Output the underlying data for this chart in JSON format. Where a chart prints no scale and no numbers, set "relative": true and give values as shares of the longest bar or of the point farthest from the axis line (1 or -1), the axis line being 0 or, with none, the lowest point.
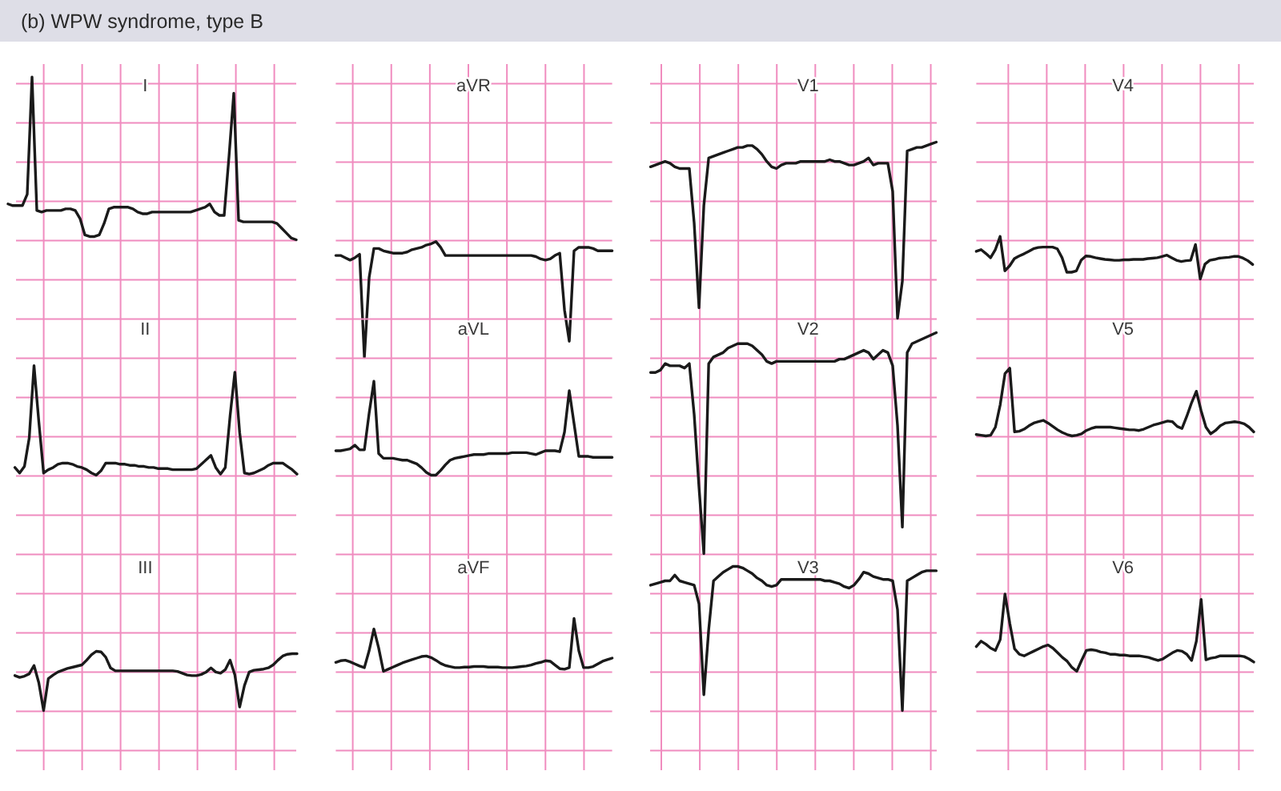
{
  "chart_data": [
    {
      "type": "other",
      "title": "(b) WPW syndrome, type B"
    },
    {
      "type": "line",
      "title": "I",
      "relative": true,
      "grid": true,
      "color": "#1a1a1a",
      "categories": [
        null,
        null,
        null,
        null,
        null,
        null,
        null,
        null,
        null,
        null,
        null,
        null,
        null,
        null,
        null,
        null,
        null,
        null,
        null,
        null,
        null,
        null,
        null,
        null,
        null,
        null,
        null,
        null,
        null,
        null,
        null,
        null,
        null,
        null,
        null,
        null,
        null,
        null,
        null,
        null,
        null,
        null,
        null,
        null,
        null,
        null,
        null,
        null,
        null,
        null,
        null,
        null,
        null,
        null,
        null,
        null,
        null,
        null,
        null,
        null,
        null
      ],
      "values": [
        0.22,
        0.21,
        0.21,
        0.21,
        0.28,
        1,
        0.18,
        0.17,
        0.18,
        0.18,
        0.18,
        0.18,
        0.19,
        0.19,
        0.18,
        0.13,
        0.03,
        0.02,
        0.02,
        0.03,
        0.1,
        0.19,
        0.2,
        0.2,
        0.2,
        0.2,
        0.19,
        0.17,
        0.16,
        0.16,
        0.17,
        0.17,
        0.17,
        0.17,
        0.17,
        0.17,
        0.17,
        0.17,
        0.17,
        0.18,
        0.19,
        0.2,
        0.22,
        0.17,
        0.15,
        0.15,
        0.51,
        0.9,
        0.12,
        0.11,
        0.11,
        0.11,
        0.11,
        0.11,
        0.11,
        0.11,
        0.1,
        0.07,
        0.04,
        0.01,
        0
      ]
    },
    {
      "type": "line",
      "title": "aVR",
      "relative": true,
      "grid": true,
      "color": "#1a1a1a",
      "categories": [
        null,
        null,
        null,
        null,
        null,
        null,
        null,
        null,
        null,
        null,
        null,
        null,
        null,
        null,
        null,
        null,
        null,
        null,
        null,
        null,
        null,
        null,
        null,
        null,
        null,
        null,
        null,
        null,
        null,
        null,
        null,
        null,
        null,
        null,
        null,
        null,
        null,
        null,
        null,
        null,
        null,
        null,
        null,
        null,
        null,
        null,
        null,
        null,
        null,
        null,
        null,
        null,
        null,
        null,
        null,
        null,
        null,
        null,
        null
      ],
      "values": [
        0.88,
        0.88,
        0.86,
        0.84,
        0.86,
        0.89,
        0,
        0.69,
        0.94,
        0.94,
        0.92,
        0.91,
        0.9,
        0.9,
        0.9,
        0.91,
        0.93,
        0.94,
        0.95,
        0.97,
        0.98,
        1,
        0.95,
        0.88,
        0.88,
        0.88,
        0.88,
        0.88,
        0.88,
        0.88,
        0.88,
        0.88,
        0.88,
        0.88,
        0.88,
        0.88,
        0.88,
        0.88,
        0.88,
        0.88,
        0.88,
        0.88,
        0.87,
        0.85,
        0.84,
        0.85,
        0.88,
        0.9,
        0.41,
        0.14,
        0.92,
        0.95,
        0.95,
        0.95,
        0.94,
        0.92,
        0.92,
        0.92,
        0.92
      ]
    },
    {
      "type": "line",
      "title": "V1",
      "relative": true,
      "grid": true,
      "color": "#1a1a1a",
      "categories": [
        null,
        null,
        null,
        null,
        null,
        null,
        null,
        null,
        null,
        null,
        null,
        null,
        null,
        null,
        null,
        null,
        null,
        null,
        null,
        null,
        null,
        null,
        null,
        null,
        null,
        null,
        null,
        null,
        null,
        null,
        null,
        null,
        null,
        null,
        null,
        null,
        null,
        null,
        null,
        null,
        null,
        null,
        null,
        null,
        null,
        null,
        null,
        null,
        null,
        null,
        null,
        null,
        null,
        null,
        null,
        null,
        null,
        null,
        null,
        null
      ],
      "values": [
        0.86,
        0.87,
        0.88,
        0.89,
        0.88,
        0.86,
        0.85,
        0.85,
        0.85,
        0.54,
        0.06,
        0.64,
        0.91,
        0.92,
        0.93,
        0.94,
        0.95,
        0.96,
        0.97,
        0.97,
        0.98,
        0.98,
        0.96,
        0.93,
        0.89,
        0.86,
        0.85,
        0.87,
        0.88,
        0.88,
        0.88,
        0.89,
        0.89,
        0.89,
        0.89,
        0.89,
        0.89,
        0.9,
        0.89,
        0.89,
        0.88,
        0.87,
        0.87,
        0.88,
        0.89,
        0.91,
        0.87,
        0.88,
        0.88,
        0.88,
        0.72,
        0,
        0.21,
        0.95,
        0.96,
        0.97,
        0.97,
        0.98,
        0.99,
        1
      ]
    },
    {
      "type": "line",
      "title": "V4",
      "relative": true,
      "grid": true,
      "color": "#1a1a1a",
      "categories": [
        null,
        null,
        null,
        null,
        null,
        null,
        null,
        null,
        null,
        null,
        null,
        null,
        null,
        null,
        null,
        null,
        null,
        null,
        null,
        null,
        null,
        null,
        null,
        null,
        null,
        null,
        null,
        null,
        null,
        null,
        null,
        null,
        null,
        null,
        null,
        null,
        null,
        null,
        null,
        null,
        null,
        null,
        null,
        null,
        null,
        null,
        null,
        null,
        null,
        null,
        null,
        null,
        null,
        null,
        null,
        null,
        null,
        null,
        null
      ],
      "values": [
        0.65,
        0.69,
        0.6,
        0.5,
        0.69,
        1,
        0.19,
        0.31,
        0.48,
        0.54,
        0.59,
        0.65,
        0.71,
        0.74,
        0.75,
        0.75,
        0.75,
        0.71,
        0.5,
        0.16,
        0.16,
        0.19,
        0.44,
        0.54,
        0.53,
        0.5,
        0.48,
        0.46,
        0.45,
        0.44,
        0.44,
        0.45,
        0.45,
        0.46,
        0.46,
        0.46,
        0.48,
        0.49,
        0.5,
        0.53,
        0.56,
        0.5,
        0.44,
        0.41,
        0.43,
        0.44,
        0.81,
        0,
        0.35,
        0.44,
        0.46,
        0.49,
        0.5,
        0.51,
        0.53,
        0.53,
        0.49,
        0.43,
        0.34
      ]
    },
    {
      "type": "line",
      "title": "II",
      "relative": true,
      "grid": true,
      "color": "#1a1a1a",
      "categories": [
        null,
        null,
        null,
        null,
        null,
        null,
        null,
        null,
        null,
        null,
        null,
        null,
        null,
        null,
        null,
        null,
        null,
        null,
        null,
        null,
        null,
        null,
        null,
        null,
        null,
        null,
        null,
        null,
        null,
        null,
        null,
        null,
        null,
        null,
        null,
        null,
        null,
        null,
        null,
        null,
        null,
        null,
        null,
        null,
        null,
        null,
        null,
        null,
        null,
        null,
        null,
        null,
        null,
        null,
        null,
        null,
        null,
        null,
        null,
        null
      ],
      "values": [
        0.07,
        0.02,
        0.08,
        0.34,
        1,
        0.49,
        0.02,
        0.05,
        0.07,
        0.1,
        0.11,
        0.11,
        0.1,
        0.08,
        0.07,
        0.05,
        0.02,
        0,
        0.04,
        0.11,
        0.11,
        0.11,
        0.1,
        0.1,
        0.09,
        0.09,
        0.08,
        0.08,
        0.07,
        0.07,
        0.06,
        0.06,
        0.06,
        0.05,
        0.05,
        0.05,
        0.05,
        0.05,
        0.06,
        0.1,
        0.14,
        0.18,
        0.07,
        0.01,
        0.07,
        0.54,
        0.94,
        0.39,
        0.02,
        0.01,
        0.02,
        0.04,
        0.06,
        0.09,
        0.11,
        0.11,
        0.11,
        0.08,
        0.05,
        0.01
      ]
    },
    {
      "type": "line",
      "title": "aVL",
      "relative": true,
      "grid": true,
      "color": "#1a1a1a",
      "categories": [
        null,
        null,
        null,
        null,
        null,
        null,
        null,
        null,
        null,
        null,
        null,
        null,
        null,
        null,
        null,
        null,
        null,
        null,
        null,
        null,
        null,
        null,
        null,
        null,
        null,
        null,
        null,
        null,
        null,
        null,
        null,
        null,
        null,
        null,
        null,
        null,
        null,
        null,
        null,
        null,
        null,
        null,
        null,
        null,
        null,
        null,
        null,
        null,
        null,
        null,
        null,
        null,
        null,
        null,
        null,
        null,
        null,
        null,
        null
      ],
      "values": [
        0.26,
        0.26,
        0.27,
        0.28,
        0.32,
        0.27,
        0.27,
        0.66,
        1,
        0.23,
        0.18,
        0.18,
        0.18,
        0.17,
        0.16,
        0.16,
        0.14,
        0.12,
        0.08,
        0.03,
        0,
        0,
        0.05,
        0.11,
        0.16,
        0.18,
        0.19,
        0.2,
        0.21,
        0.22,
        0.22,
        0.22,
        0.23,
        0.23,
        0.23,
        0.23,
        0.23,
        0.24,
        0.24,
        0.24,
        0.24,
        0.23,
        0.22,
        0.24,
        0.26,
        0.26,
        0.26,
        0.25,
        0.46,
        0.9,
        0.55,
        0.2,
        0.2,
        0.2,
        0.19,
        0.19,
        0.19,
        0.19,
        0.19
      ]
    },
    {
      "type": "line",
      "title": "V2",
      "relative": true,
      "grid": true,
      "color": "#1a1a1a",
      "categories": [
        null,
        null,
        null,
        null,
        null,
        null,
        null,
        null,
        null,
        null,
        null,
        null,
        null,
        null,
        null,
        null,
        null,
        null,
        null,
        null,
        null,
        null,
        null,
        null,
        null,
        null,
        null,
        null,
        null,
        null,
        null,
        null,
        null,
        null,
        null,
        null,
        null,
        null,
        null,
        null,
        null,
        null,
        null,
        null,
        null,
        null,
        null,
        null,
        null,
        null,
        null,
        null,
        null,
        null,
        null,
        null,
        null,
        null,
        null,
        null
      ],
      "values": [
        0.82,
        0.82,
        0.83,
        0.86,
        0.85,
        0.85,
        0.85,
        0.84,
        0.86,
        0.63,
        0.3,
        0,
        0.86,
        0.89,
        0.9,
        0.91,
        0.93,
        0.94,
        0.95,
        0.95,
        0.95,
        0.94,
        0.92,
        0.9,
        0.87,
        0.86,
        0.87,
        0.87,
        0.87,
        0.87,
        0.87,
        0.87,
        0.87,
        0.87,
        0.87,
        0.87,
        0.87,
        0.87,
        0.87,
        0.88,
        0.88,
        0.89,
        0.9,
        0.91,
        0.92,
        0.91,
        0.88,
        0.9,
        0.92,
        0.91,
        0.85,
        0.58,
        0.12,
        0.91,
        0.95,
        0.96,
        0.97,
        0.98,
        0.99,
        1
      ]
    },
    {
      "type": "line",
      "title": "V5",
      "relative": true,
      "grid": true,
      "color": "#1a1a1a",
      "categories": [
        null,
        null,
        null,
        null,
        null,
        null,
        null,
        null,
        null,
        null,
        null,
        null,
        null,
        null,
        null,
        null,
        null,
        null,
        null,
        null,
        null,
        null,
        null,
        null,
        null,
        null,
        null,
        null,
        null,
        null,
        null,
        null,
        null,
        null,
        null,
        null,
        null,
        null,
        null,
        null,
        null,
        null,
        null,
        null,
        null,
        null,
        null,
        null,
        null,
        null,
        null,
        null,
        null,
        null,
        null,
        null,
        null,
        null,
        null
      ],
      "values": [
        0.02,
        0.01,
        0,
        0.01,
        0.13,
        0.46,
        0.92,
        1,
        0.06,
        0.07,
        0.1,
        0.15,
        0.19,
        0.21,
        0.23,
        0.19,
        0.14,
        0.09,
        0.05,
        0.02,
        0,
        0.01,
        0.03,
        0.08,
        0.11,
        0.13,
        0.13,
        0.13,
        0.13,
        0.12,
        0.11,
        0.1,
        0.09,
        0.09,
        0.08,
        0.1,
        0.13,
        0.16,
        0.18,
        0.2,
        0.22,
        0.21,
        0.14,
        0.11,
        0.29,
        0.49,
        0.66,
        0.37,
        0.13,
        0.03,
        0.08,
        0.15,
        0.19,
        0.2,
        0.21,
        0.2,
        0.18,
        0.13,
        0.06
      ]
    },
    {
      "type": "line",
      "title": "III",
      "relative": true,
      "grid": true,
      "color": "#1a1a1a",
      "categories": [
        null,
        null,
        null,
        null,
        null,
        null,
        null,
        null,
        null,
        null,
        null,
        null,
        null,
        null,
        null,
        null,
        null,
        null,
        null,
        null,
        null,
        null,
        null,
        null,
        null,
        null,
        null,
        null,
        null,
        null,
        null,
        null,
        null,
        null,
        null,
        null,
        null,
        null,
        null,
        null,
        null,
        null,
        null,
        null,
        null,
        null,
        null,
        null,
        null,
        null,
        null,
        null,
        null,
        null,
        null,
        null,
        null,
        null,
        null,
        null
      ],
      "values": [
        0.59,
        0.56,
        0.58,
        0.62,
        0.76,
        0.47,
        0,
        0.54,
        0.6,
        0.65,
        0.68,
        0.71,
        0.73,
        0.75,
        0.77,
        0.85,
        0.94,
        1,
        0.99,
        0.9,
        0.72,
        0.67,
        0.67,
        0.67,
        0.67,
        0.67,
        0.67,
        0.67,
        0.67,
        0.67,
        0.67,
        0.67,
        0.67,
        0.67,
        0.66,
        0.63,
        0.6,
        0.59,
        0.59,
        0.61,
        0.65,
        0.72,
        0.65,
        0.63,
        0.69,
        0.85,
        0.6,
        0.06,
        0.42,
        0.65,
        0.68,
        0.69,
        0.7,
        0.72,
        0.77,
        0.85,
        0.92,
        0.95,
        0.96,
        0.96
      ]
    },
    {
      "type": "line",
      "title": "aVF",
      "relative": true,
      "grid": true,
      "color": "#1a1a1a",
      "categories": [
        null,
        null,
        null,
        null,
        null,
        null,
        null,
        null,
        null,
        null,
        null,
        null,
        null,
        null,
        null,
        null,
        null,
        null,
        null,
        null,
        null,
        null,
        null,
        null,
        null,
        null,
        null,
        null,
        null,
        null,
        null,
        null,
        null,
        null,
        null,
        null,
        null,
        null,
        null,
        null,
        null,
        null,
        null,
        null,
        null,
        null,
        null,
        null,
        null,
        null,
        null,
        null,
        null,
        null,
        null,
        null,
        null,
        null,
        null
      ],
      "values": [
        0.17,
        0.2,
        0.21,
        0.18,
        0.14,
        0.1,
        0.07,
        0.39,
        0.8,
        0.44,
        0,
        0.04,
        0.08,
        0.12,
        0.16,
        0.19,
        0.22,
        0.25,
        0.28,
        0.29,
        0.26,
        0.21,
        0.15,
        0.11,
        0.09,
        0.07,
        0.07,
        0.08,
        0.08,
        0.09,
        0.09,
        0.09,
        0.08,
        0.08,
        0.08,
        0.07,
        0.07,
        0.07,
        0.08,
        0.09,
        0.1,
        0.12,
        0.15,
        0.17,
        0.2,
        0.19,
        0.12,
        0.05,
        0.04,
        0.07,
        1,
        0.39,
        0.07,
        0.07,
        0.09,
        0.14,
        0.19,
        0.22,
        0.25
      ]
    },
    {
      "type": "line",
      "title": "V3",
      "relative": true,
      "grid": true,
      "color": "#1a1a1a",
      "categories": [
        null,
        null,
        null,
        null,
        null,
        null,
        null,
        null,
        null,
        null,
        null,
        null,
        null,
        null,
        null,
        null,
        null,
        null,
        null,
        null,
        null,
        null,
        null,
        null,
        null,
        null,
        null,
        null,
        null,
        null,
        null,
        null,
        null,
        null,
        null,
        null,
        null,
        null,
        null,
        null,
        null,
        null,
        null,
        null,
        null,
        null,
        null,
        null,
        null,
        null,
        null,
        null,
        null,
        null,
        null,
        null,
        null,
        null,
        null,
        null
      ],
      "values": [
        0.87,
        0.88,
        0.89,
        0.9,
        0.9,
        0.94,
        0.9,
        0.89,
        0.88,
        0.87,
        0.74,
        0.11,
        0.56,
        0.9,
        0.93,
        0.96,
        0.98,
        1,
        1,
        0.99,
        0.97,
        0.95,
        0.92,
        0.9,
        0.87,
        0.86,
        0.87,
        0.91,
        0.91,
        0.91,
        0.91,
        0.91,
        0.91,
        0.91,
        0.91,
        0.91,
        0.9,
        0.9,
        0.89,
        0.88,
        0.86,
        0.85,
        0.87,
        0.91,
        0.96,
        0.95,
        0.93,
        0.92,
        0.91,
        0.91,
        0.9,
        0.7,
        0,
        0.9,
        0.92,
        0.94,
        0.96,
        0.97,
        0.97,
        0.97
      ]
    },
    {
      "type": "line",
      "title": "V6",
      "relative": true,
      "grid": true,
      "color": "#1a1a1a",
      "categories": [
        null,
        null,
        null,
        null,
        null,
        null,
        null,
        null,
        null,
        null,
        null,
        null,
        null,
        null,
        null,
        null,
        null,
        null,
        null,
        null,
        null,
        null,
        null,
        null,
        null,
        null,
        null,
        null,
        null,
        null,
        null,
        null,
        null,
        null,
        null,
        null,
        null,
        null,
        null,
        null,
        null,
        null,
        null,
        null,
        null,
        null,
        null,
        null,
        null,
        null,
        null,
        null,
        null,
        null,
        null,
        null,
        null,
        null,
        null
      ],
      "values": [
        0.32,
        0.39,
        0.35,
        0.3,
        0.27,
        0.41,
        1,
        0.62,
        0.29,
        0.22,
        0.2,
        0.23,
        0.26,
        0.29,
        0.32,
        0.34,
        0.3,
        0.24,
        0.18,
        0.13,
        0.05,
        0,
        0.14,
        0.27,
        0.28,
        0.27,
        0.25,
        0.24,
        0.22,
        0.22,
        0.21,
        0.21,
        0.2,
        0.2,
        0.2,
        0.19,
        0.18,
        0.16,
        0.14,
        0.16,
        0.2,
        0.24,
        0.27,
        0.26,
        0.22,
        0.14,
        0.39,
        0.93,
        0.15,
        0.17,
        0.18,
        0.2,
        0.2,
        0.2,
        0.2,
        0.2,
        0.19,
        0.16,
        0.12
      ]
    }
  ]
}
